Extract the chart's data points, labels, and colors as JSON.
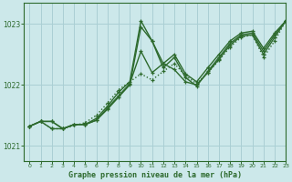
{
  "background_color": "#cce8ea",
  "grid_color": "#aacfd4",
  "line_color": "#2d6a2d",
  "title": "Graphe pression niveau de la mer (hPa)",
  "xlim": [
    -0.5,
    23
  ],
  "ylim": [
    1020.75,
    1023.35
  ],
  "yticks": [
    1021,
    1022,
    1023
  ],
  "xticks": [
    0,
    1,
    2,
    3,
    4,
    5,
    6,
    7,
    8,
    9,
    10,
    11,
    12,
    13,
    14,
    15,
    16,
    17,
    18,
    19,
    20,
    21,
    22,
    23
  ],
  "lines": [
    {
      "x": [
        0,
        1,
        2,
        3,
        4,
        5,
        6,
        7,
        8,
        9,
        10,
        11,
        12,
        13,
        14,
        15,
        16,
        17,
        18,
        19,
        20,
        21,
        22,
        23
      ],
      "y": [
        1021.32,
        1021.4,
        1021.4,
        1021.28,
        1021.35,
        1021.35,
        1021.42,
        1021.6,
        1021.8,
        1022.0,
        1022.95,
        1022.72,
        1022.35,
        1022.5,
        1022.18,
        1022.05,
        1022.28,
        1022.5,
        1022.72,
        1022.85,
        1022.88,
        1022.6,
        1022.85,
        1023.05
      ],
      "linestyle": "-",
      "linewidth": 1.0,
      "marker": "+"
    },
    {
      "x": [
        0,
        1,
        2,
        3,
        4,
        5,
        6,
        7,
        8,
        9,
        10,
        11,
        12,
        13,
        14,
        15,
        16,
        17,
        18,
        19,
        20,
        21,
        22,
        23
      ],
      "y": [
        1021.32,
        1021.4,
        1021.4,
        1021.28,
        1021.35,
        1021.35,
        1021.45,
        1021.65,
        1021.88,
        1022.05,
        1023.05,
        1022.72,
        1022.28,
        1022.45,
        1022.12,
        1021.98,
        1022.22,
        1022.45,
        1022.68,
        1022.82,
        1022.85,
        1022.55,
        1022.82,
        1023.05
      ],
      "linestyle": "-",
      "linewidth": 1.0,
      "marker": "+"
    },
    {
      "x": [
        0,
        1,
        2,
        3,
        4,
        5,
        6,
        7,
        8,
        9,
        10,
        11,
        12,
        13,
        14,
        15,
        16,
        17,
        18,
        19,
        20,
        21,
        22,
        23
      ],
      "y": [
        1021.32,
        1021.4,
        1021.28,
        1021.28,
        1021.35,
        1021.35,
        1021.42,
        1021.62,
        1021.82,
        1022.02,
        1022.55,
        1022.2,
        1022.35,
        1022.25,
        1022.05,
        1022.0,
        1022.2,
        1022.42,
        1022.65,
        1022.8,
        1022.82,
        1022.5,
        1022.78,
        1023.05
      ],
      "linestyle": "-",
      "linewidth": 1.0,
      "marker": "+"
    },
    {
      "x": [
        0,
        1,
        2,
        3,
        5,
        6,
        7,
        8,
        10,
        11,
        12,
        13,
        14,
        15,
        16,
        17,
        18,
        19,
        20,
        21,
        22,
        23
      ],
      "y": [
        1021.32,
        1021.4,
        1021.28,
        1021.28,
        1021.38,
        1021.5,
        1021.7,
        1021.92,
        1022.18,
        1022.08,
        1022.22,
        1022.35,
        1022.15,
        1022.02,
        1022.2,
        1022.4,
        1022.62,
        1022.78,
        1022.82,
        1022.45,
        1022.72,
        1023.05
      ],
      "linestyle": "dotted",
      "linewidth": 1.0,
      "marker": "+"
    }
  ]
}
